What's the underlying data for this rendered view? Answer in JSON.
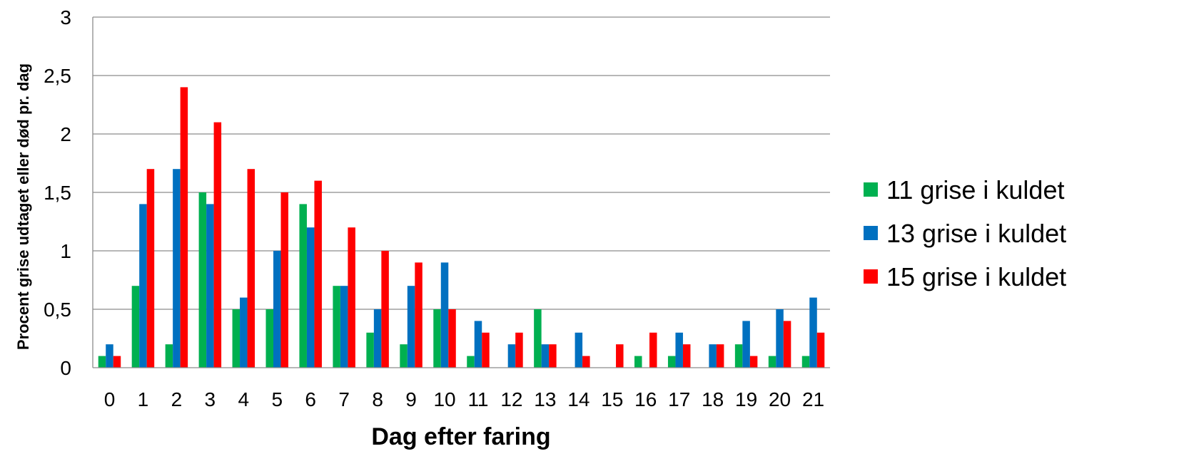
{
  "chart_data": {
    "type": "bar",
    "xlabel": "Dag efter faring",
    "ylabel": "Procent grise udtaget eller død pr. dag",
    "categories": [
      "0",
      "1",
      "2",
      "3",
      "4",
      "5",
      "6",
      "7",
      "8",
      "9",
      "10",
      "11",
      "12",
      "13",
      "14",
      "15",
      "16",
      "17",
      "18",
      "19",
      "20",
      "21"
    ],
    "ylim": [
      0,
      3
    ],
    "yticks": [
      "0",
      "0,5",
      "1",
      "1,5",
      "2",
      "2,5",
      "3"
    ],
    "grid": true,
    "legend_position": "right",
    "series": [
      {
        "name": "11 grise i kuldet",
        "color": "#00B050",
        "values": [
          0.1,
          0.7,
          0.2,
          1.5,
          0.5,
          0.5,
          1.4,
          0.7,
          0.3,
          0.2,
          0.5,
          0.1,
          0,
          0.5,
          0,
          0,
          0.1,
          0.1,
          0,
          0.2,
          0.1,
          0.1
        ]
      },
      {
        "name": "13 grise i kuldet",
        "color": "#0070C0",
        "values": [
          0.2,
          1.4,
          1.7,
          1.4,
          0.6,
          1.0,
          1.2,
          0.7,
          0.5,
          0.7,
          0.9,
          0.4,
          0.2,
          0.2,
          0.3,
          0,
          0,
          0.3,
          0.2,
          0.4,
          0.5,
          0.6
        ]
      },
      {
        "name": "15 grise i kuldet",
        "color": "#FF0000",
        "values": [
          0.1,
          1.7,
          2.4,
          2.1,
          1.7,
          1.5,
          1.6,
          1.2,
          1.0,
          0.9,
          0.5,
          0.3,
          0.3,
          0.2,
          0.1,
          0.2,
          0.3,
          0.2,
          0.2,
          0.1,
          0.4,
          0.3
        ]
      }
    ]
  }
}
